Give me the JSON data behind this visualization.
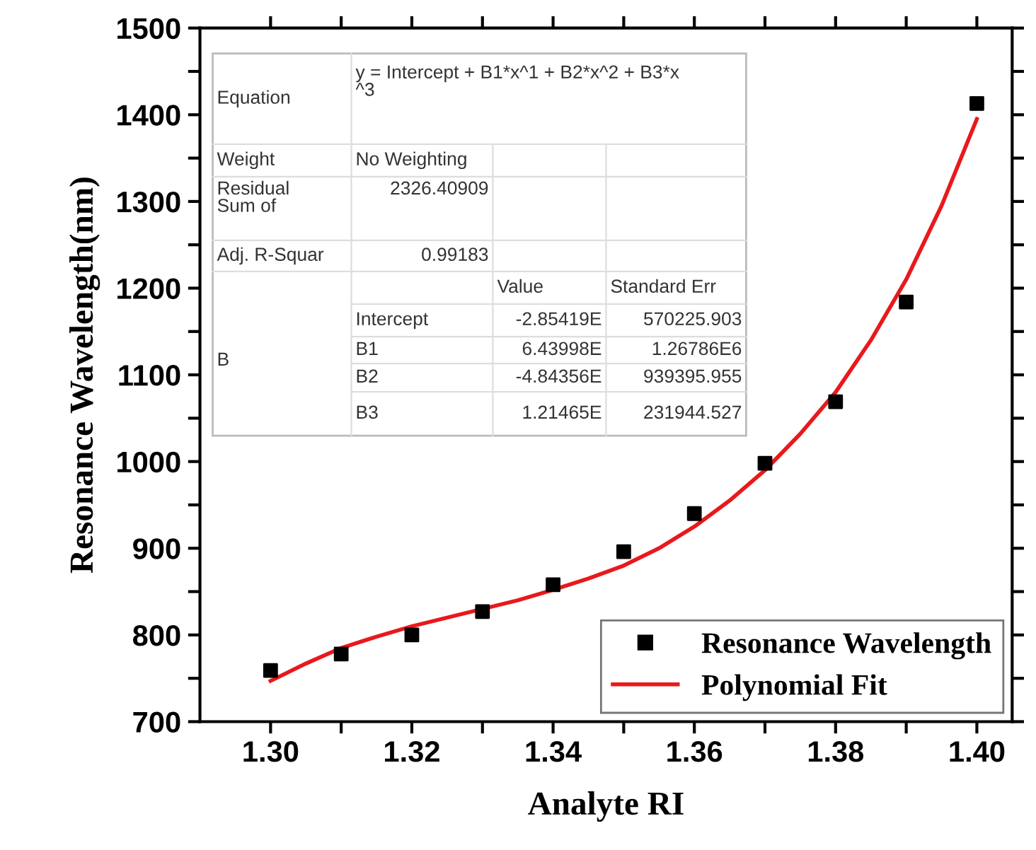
{
  "chart_data": {
    "type": "scatter",
    "xlabel": "Analyte RI",
    "ylabel": "Resonance Wavelength(nm)",
    "xlim": [
      1.29,
      1.405
    ],
    "ylim": [
      700,
      1500
    ],
    "xticks": [
      {
        "value": 1.3,
        "label": "1.30"
      },
      {
        "value": 1.31,
        "label": null
      },
      {
        "value": 1.32,
        "label": "1.32"
      },
      {
        "value": 1.33,
        "label": null
      },
      {
        "value": 1.34,
        "label": "1.34"
      },
      {
        "value": 1.35,
        "label": null
      },
      {
        "value": 1.36,
        "label": "1.36"
      },
      {
        "value": 1.37,
        "label": null
      },
      {
        "value": 1.38,
        "label": "1.38"
      },
      {
        "value": 1.39,
        "label": null
      },
      {
        "value": 1.4,
        "label": "1.40"
      }
    ],
    "yticks": [
      700,
      {
        "value": 750,
        "label": null
      },
      800,
      {
        "value": 850,
        "label": null
      },
      900,
      {
        "value": 950,
        "label": null
      },
      1000,
      {
        "value": 1050,
        "label": null
      },
      1100,
      {
        "value": 1150,
        "label": null
      },
      1200,
      {
        "value": 1250,
        "label": null
      },
      1300,
      {
        "value": 1350,
        "label": null
      },
      1400,
      {
        "value": 1450,
        "label": null
      },
      1500
    ],
    "grid": false,
    "legend": "bottom right",
    "series": [
      {
        "name": "Resonance Wavelength",
        "marker": "square",
        "color": "#000000",
        "x": [
          1.3,
          1.31,
          1.32,
          1.33,
          1.34,
          1.35,
          1.36,
          1.37,
          1.38,
          1.39,
          1.4
        ],
        "values": [
          759,
          778,
          800,
          827,
          858,
          896,
          940,
          998,
          1069,
          1184,
          1413
        ]
      },
      {
        "name": "Polynomial Fit",
        "type": "line",
        "marker": "none",
        "line_style": "solid",
        "color": "#e8191c",
        "x": [
          1.3,
          1.305,
          1.31,
          1.315,
          1.32,
          1.325,
          1.33,
          1.335,
          1.34,
          1.345,
          1.35,
          1.355,
          1.36,
          1.365,
          1.37,
          1.375,
          1.38,
          1.385,
          1.39,
          1.395,
          1.4
        ],
        "values": [
          747,
          767,
          785,
          798,
          810,
          820,
          830,
          840,
          852,
          865,
          880,
          900,
          925,
          955,
          990,
          1032,
          1080,
          1140,
          1210,
          1295,
          1395
        ]
      }
    ],
    "annotations": [
      "Equation",
      "y = Intercept + B1*x^1 + B2*x^2 + B3*x\n^3",
      "Weight",
      "No Weighting",
      "Residual\nSum of",
      "2326.40909",
      "Adj. R-Squar",
      "0.99183",
      "Value",
      "Standard Err",
      "B",
      "Intercept",
      "-2.85419E",
      "570225.903",
      "B1",
      "6.43998E",
      "1.26786E6",
      "B2",
      "-4.84356E",
      "939395.955",
      "B3",
      "1.21465E",
      "231944.527"
    ]
  }
}
